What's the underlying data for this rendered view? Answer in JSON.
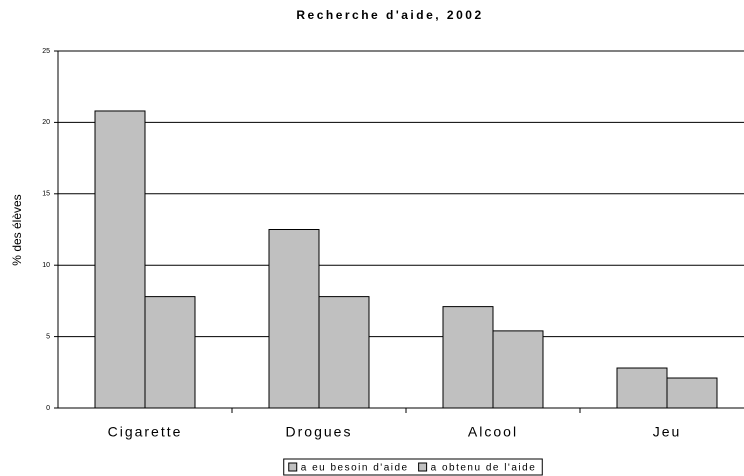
{
  "chart_data": {
    "type": "bar",
    "title": "Recherche d'aide, 2002",
    "y_label": "% des élèves",
    "categories": [
      "Cigarette",
      "Drogues",
      "Alcool",
      "Jeu"
    ],
    "series": [
      {
        "name": "a eu besoin d'aide",
        "color": "#c0c0c0",
        "values": [
          20.8,
          12.5,
          7.1,
          2.8
        ]
      },
      {
        "name": "a obtenu de l'aide",
        "color": "#c0c0c0",
        "values": [
          7.8,
          7.8,
          5.4,
          2.1
        ]
      }
    ],
    "ylim": [
      0,
      25
    ],
    "yticks": [
      0,
      5,
      10,
      15,
      20,
      25
    ],
    "grid": true,
    "legend": "bottom"
  }
}
